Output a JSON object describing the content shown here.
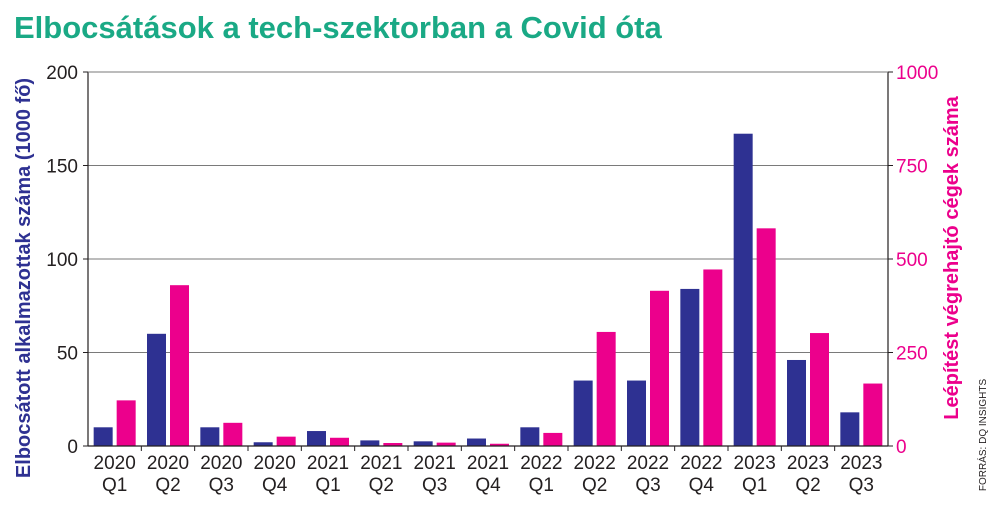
{
  "chart_data": {
    "type": "bar",
    "title": "Elbocsátások a tech-szektorban a Covid óta",
    "source": "FORRÁS: DQ INSIGHTS",
    "categories": [
      [
        "2020",
        "Q1"
      ],
      [
        "2020",
        "Q2"
      ],
      [
        "2020",
        "Q3"
      ],
      [
        "2020",
        "Q4"
      ],
      [
        "2021",
        "Q1"
      ],
      [
        "2021",
        "Q2"
      ],
      [
        "2021",
        "Q3"
      ],
      [
        "2021",
        "Q4"
      ],
      [
        "2022",
        "Q1"
      ],
      [
        "2022",
        "Q2"
      ],
      [
        "2022",
        "Q3"
      ],
      [
        "2022",
        "Q4"
      ],
      [
        "2023",
        "Q1"
      ],
      [
        "2023",
        "Q2"
      ],
      [
        "2023",
        "Q3"
      ]
    ],
    "left_axis": {
      "label": "Elbocsátott alkalmazottak száma (1000 fő)",
      "range": [
        0,
        200
      ],
      "ticks": [
        0,
        50,
        100,
        150,
        200
      ],
      "color": "#2e3192"
    },
    "right_axis": {
      "label": "Leépítést végrehajtó cégek száma",
      "range": [
        0,
        1000
      ],
      "ticks": [
        0,
        250,
        500,
        750,
        1000
      ],
      "color": "#ec008c"
    },
    "series": [
      {
        "axis": "left",
        "color": "#2e3192",
        "values": [
          10,
          60,
          10,
          2,
          8,
          3,
          2.5,
          4,
          10,
          35,
          35,
          84,
          167,
          46,
          18
        ]
      },
      {
        "axis": "right",
        "color": "#ec008c",
        "values": [
          122,
          430,
          62,
          25,
          22,
          8,
          9,
          6,
          35,
          305,
          415,
          472,
          582,
          302,
          167
        ]
      }
    ],
    "grid": true,
    "title_color": "#1aa985"
  }
}
